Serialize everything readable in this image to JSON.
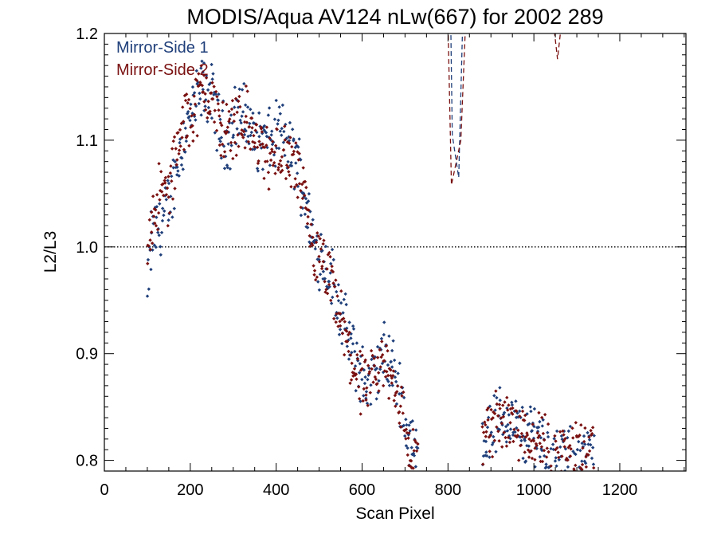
{
  "chart_data": {
    "type": "scatter",
    "title": "MODIS/Aqua AV124 nLw(667) for 2002 289",
    "xlabel": "Scan Pixel",
    "ylabel": "L2/L3",
    "xlim": [
      0,
      1354
    ],
    "ylim": [
      0.79,
      1.2
    ],
    "x_ticks": [
      0,
      200,
      400,
      600,
      800,
      1000,
      1200
    ],
    "x_tick_labels": [
      "0",
      "200",
      "400",
      "600",
      "800",
      "1000",
      "1200"
    ],
    "y_ticks": [
      0.8,
      0.9,
      1.0,
      1.1,
      1.2
    ],
    "y_tick_labels": [
      "0.8",
      "0.9",
      "1.0",
      "1.1",
      "1.2"
    ],
    "reference_line": {
      "y": 1.0,
      "style": "dotted"
    },
    "legend_position": "top-left",
    "series": [
      {
        "name": "Mirror-Side 1",
        "color": "#1f3f7a",
        "marker": "diamond",
        "profile": [
          [
            100,
            0.95
          ],
          [
            110,
            1.01
          ],
          [
            130,
            1.02
          ],
          [
            150,
            1.04
          ],
          [
            170,
            1.08
          ],
          [
            190,
            1.11
          ],
          [
            210,
            1.13
          ],
          [
            230,
            1.15
          ],
          [
            250,
            1.14
          ],
          [
            270,
            1.11
          ],
          [
            290,
            1.1
          ],
          [
            310,
            1.13
          ],
          [
            330,
            1.12
          ],
          [
            350,
            1.1
          ],
          [
            370,
            1.1
          ],
          [
            390,
            1.1
          ],
          [
            410,
            1.11
          ],
          [
            430,
            1.09
          ],
          [
            450,
            1.08
          ],
          [
            470,
            1.04
          ],
          [
            490,
            1.0
          ],
          [
            510,
            0.99
          ],
          [
            530,
            0.97
          ],
          [
            550,
            0.94
          ],
          [
            570,
            0.91
          ],
          [
            590,
            0.89
          ],
          [
            610,
            0.87
          ],
          [
            630,
            0.88
          ],
          [
            650,
            0.9
          ],
          [
            670,
            0.89
          ],
          [
            690,
            0.86
          ],
          [
            710,
            0.82
          ],
          [
            730,
            0.8
          ],
          [
            880,
            0.82
          ],
          [
            900,
            0.83
          ],
          [
            920,
            0.84
          ],
          [
            940,
            0.84
          ],
          [
            960,
            0.83
          ],
          [
            980,
            0.82
          ],
          [
            1000,
            0.83
          ],
          [
            1020,
            0.82
          ],
          [
            1040,
            0.8
          ],
          [
            1100,
            0.8
          ],
          [
            1140,
            0.8
          ]
        ],
        "fit_line": {
          "x": [
            800,
            810,
            825,
            840
          ],
          "y": [
            1.4,
            1.105,
            1.065,
            1.3
          ],
          "style": "dashed"
        }
      },
      {
        "name": "Mirror-Side 2",
        "color": "#7a1010",
        "marker": "diamond",
        "profile": [
          [
            100,
            1.0
          ],
          [
            110,
            1.03
          ],
          [
            130,
            1.05
          ],
          [
            150,
            1.05
          ],
          [
            170,
            1.09
          ],
          [
            190,
            1.12
          ],
          [
            210,
            1.13
          ],
          [
            230,
            1.15
          ],
          [
            250,
            1.14
          ],
          [
            270,
            1.11
          ],
          [
            290,
            1.11
          ],
          [
            310,
            1.12
          ],
          [
            330,
            1.12
          ],
          [
            350,
            1.1
          ],
          [
            370,
            1.09
          ],
          [
            390,
            1.08
          ],
          [
            410,
            1.09
          ],
          [
            430,
            1.08
          ],
          [
            450,
            1.07
          ],
          [
            470,
            1.03
          ],
          [
            490,
            0.99
          ],
          [
            510,
            0.98
          ],
          [
            530,
            0.96
          ],
          [
            550,
            0.93
          ],
          [
            570,
            0.9
          ],
          [
            590,
            0.88
          ],
          [
            610,
            0.86
          ],
          [
            630,
            0.88
          ],
          [
            650,
            0.89
          ],
          [
            670,
            0.88
          ],
          [
            690,
            0.85
          ],
          [
            710,
            0.81
          ],
          [
            730,
            0.8
          ],
          [
            880,
            0.82
          ],
          [
            900,
            0.83
          ],
          [
            920,
            0.84
          ],
          [
            940,
            0.84
          ],
          [
            960,
            0.83
          ],
          [
            980,
            0.83
          ],
          [
            1000,
            0.82
          ],
          [
            1020,
            0.82
          ],
          [
            1040,
            0.8
          ],
          [
            1100,
            0.81
          ],
          [
            1140,
            0.8
          ]
        ],
        "fit_line": {
          "x": [
            790,
            808,
            830,
            850,
            1040,
            1055,
            1070
          ],
          "y": [
            1.4,
            1.058,
            1.1,
            1.3,
            1.23,
            1.176,
            1.23
          ],
          "style": "dashed"
        }
      }
    ]
  }
}
